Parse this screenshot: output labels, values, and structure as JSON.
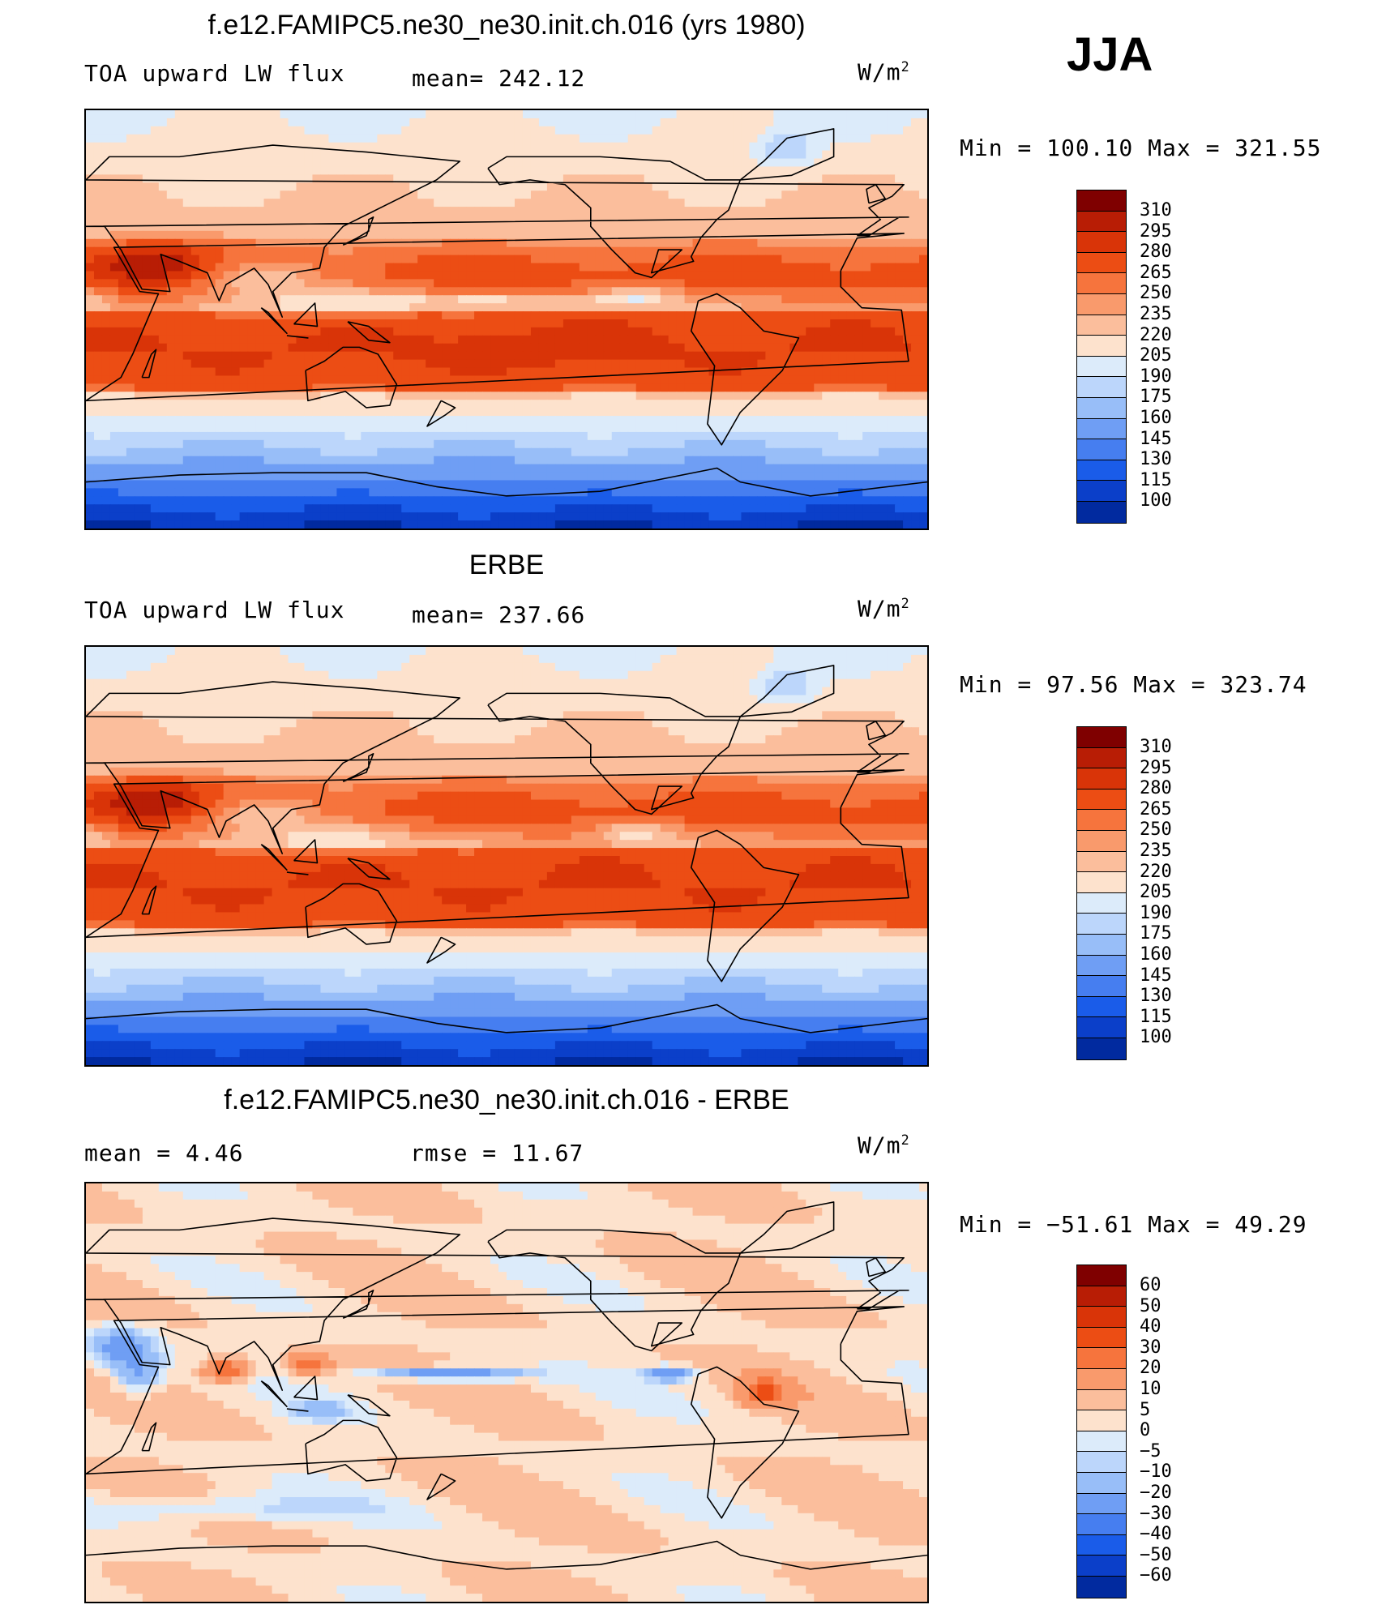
{
  "season": "JJA",
  "panels": [
    {
      "title": "f.e12.FAMIPC5.ne30_ne30.init.ch.016 (yrs 1980)",
      "left_label": "TOA upward LW flux",
      "center_label": "mean=  242.12",
      "units": "W/m",
      "units_sup": "2",
      "minmax": "Min  =  100.10  Max  =  321.55",
      "field": "model"
    },
    {
      "title": "ERBE",
      "left_label": "TOA upward LW flux",
      "center_label": "mean=  237.66",
      "units": "W/m",
      "units_sup": "2",
      "minmax": "Min  =   97.56  Max  =  323.74",
      "field": "obs"
    },
    {
      "title": "f.e12.FAMIPC5.ne30_ne30.init.ch.016 - ERBE",
      "left_label": "mean  =     4.46",
      "center_label": "rmse  =    11.67",
      "units": "W/m",
      "units_sup": "2",
      "minmax": "Min  =  −51.61  Max  =    49.29",
      "field": "diff"
    }
  ],
  "colorbars": {
    "flux": {
      "labels": [
        "310",
        "295",
        "280",
        "265",
        "250",
        "235",
        "220",
        "205",
        "190",
        "175",
        "160",
        "145",
        "130",
        "115",
        "100"
      ],
      "colors": [
        "#7f0000",
        "#b81d05",
        "#d93408",
        "#ec4d14",
        "#f6743d",
        "#f99a6c",
        "#fbbe9c",
        "#fde2cd",
        "#dcebfa",
        "#bcd6fb",
        "#98bef8",
        "#6f9ef4",
        "#467ef0",
        "#1a5ce9",
        "#0b3fc9",
        "#012a9f"
      ]
    },
    "diff": {
      "labels": [
        "60",
        "50",
        "40",
        "30",
        "20",
        "10",
        "5",
        "0",
        "−5",
        "−10",
        "−20",
        "−30",
        "−40",
        "−50",
        "−60"
      ],
      "colors": [
        "#7f0000",
        "#b81d05",
        "#d93408",
        "#ec4d14",
        "#f6743d",
        "#f99a6c",
        "#fbbe9c",
        "#fde2cd",
        "#dcebfa",
        "#bcd6fb",
        "#98bef8",
        "#6f9ef4",
        "#467ef0",
        "#1a5ce9",
        "#0b3fc9",
        "#012a9f"
      ]
    }
  }
}
